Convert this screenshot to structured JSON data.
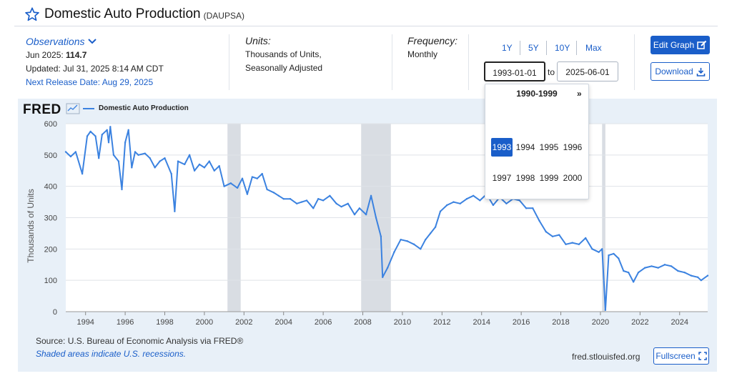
{
  "header": {
    "title": "Domestic Auto Production",
    "series_id": "(DAUPSA)"
  },
  "observations": {
    "label": "Observations",
    "period_label": "Jun 2025: ",
    "latest_value": "114.7",
    "updated": "Updated: Jul 31, 2025 8:14 AM CDT",
    "next_release": "Next Release Date: Aug 29, 2025"
  },
  "units": {
    "label": "Units:",
    "line1": "Thousands of Units,",
    "line2": "Seasonally Adjusted"
  },
  "frequency": {
    "label": "Frequency:",
    "value": "Monthly"
  },
  "range_buttons": [
    "1Y",
    "5Y",
    "10Y",
    "Max"
  ],
  "date_range": {
    "start": "1993-01-01",
    "to_label": "to",
    "end": "2025-06-01"
  },
  "buttons": {
    "edit_graph": "Edit Graph",
    "download": "Download",
    "fullscreen": "Fullscreen"
  },
  "year_picker": {
    "decade": "1990-1999",
    "next": "»",
    "years_row1": [
      "1993",
      "1994",
      "1995",
      "1996"
    ],
    "years_row2": [
      "1997",
      "1998",
      "1999",
      "2000"
    ],
    "selected": "1993"
  },
  "footer": {
    "source": "Source: U.S. Bureau of Economic Analysis via FRED®",
    "shaded_note": "Shaded areas indicate U.S. recessions.",
    "site": "fred.stlouisfed.org"
  },
  "logo": "FRED",
  "colors": {
    "line": "#3b82e0",
    "recession": "#d9dde3",
    "accent": "#1a5ec9",
    "panel_bg": "#e8f0f8"
  },
  "chart_data": {
    "type": "line",
    "title": "",
    "xlabel": "",
    "ylabel": "Thousands of Units",
    "ylim": [
      0,
      600
    ],
    "xlim": [
      "1993-01",
      "2025-06"
    ],
    "y_ticks": [
      "0",
      "100",
      "200",
      "300",
      "400",
      "500",
      "600"
    ],
    "x_ticks": [
      "1994",
      "1996",
      "1998",
      "2000",
      "2002",
      "2004",
      "2006",
      "2008",
      "2010",
      "2012",
      "2014",
      "2016",
      "2018",
      "2020",
      "2022",
      "2024"
    ],
    "grid": true,
    "legend_position": "top-left",
    "recessions": [
      {
        "start": "2001-03",
        "end": "2001-11"
      },
      {
        "start": "2007-12",
        "end": "2009-06"
      },
      {
        "start": "2020-02",
        "end": "2020-04"
      }
    ],
    "series": [
      {
        "name": "Domestic Auto Production",
        "points": [
          [
            "1993-01",
            510
          ],
          [
            "1993-04",
            495
          ],
          [
            "1993-07",
            510
          ],
          [
            "1993-11",
            440
          ],
          [
            "1994-02",
            560
          ],
          [
            "1994-04",
            575
          ],
          [
            "1994-07",
            560
          ],
          [
            "1994-09",
            490
          ],
          [
            "1994-11",
            565
          ],
          [
            "1995-02",
            580
          ],
          [
            "1995-03",
            540
          ],
          [
            "1995-04",
            590
          ],
          [
            "1995-06",
            500
          ],
          [
            "1995-09",
            480
          ],
          [
            "1995-11",
            390
          ],
          [
            "1996-01",
            540
          ],
          [
            "1996-03",
            580
          ],
          [
            "1996-05",
            460
          ],
          [
            "1996-07",
            510
          ],
          [
            "1996-09",
            500
          ],
          [
            "1997-01",
            505
          ],
          [
            "1997-04",
            490
          ],
          [
            "1997-07",
            460
          ],
          [
            "1997-10",
            480
          ],
          [
            "1998-01",
            490
          ],
          [
            "1998-05",
            440
          ],
          [
            "1998-07",
            320
          ],
          [
            "1998-09",
            480
          ],
          [
            "1999-01",
            470
          ],
          [
            "1999-04",
            500
          ],
          [
            "1999-07",
            450
          ],
          [
            "1999-10",
            470
          ],
          [
            "2000-01",
            460
          ],
          [
            "2000-04",
            480
          ],
          [
            "2000-07",
            450
          ],
          [
            "2000-10",
            465
          ],
          [
            "2001-01",
            400
          ],
          [
            "2001-05",
            410
          ],
          [
            "2001-09",
            395
          ],
          [
            "2001-12",
            425
          ],
          [
            "2002-03",
            375
          ],
          [
            "2002-06",
            430
          ],
          [
            "2002-09",
            425
          ],
          [
            "2002-12",
            440
          ],
          [
            "2003-03",
            390
          ],
          [
            "2003-07",
            380
          ],
          [
            "2003-10",
            370
          ],
          [
            "2004-01",
            360
          ],
          [
            "2004-05",
            360
          ],
          [
            "2004-09",
            345
          ],
          [
            "2004-12",
            350
          ],
          [
            "2005-03",
            355
          ],
          [
            "2005-07",
            330
          ],
          [
            "2005-10",
            360
          ],
          [
            "2006-01",
            355
          ],
          [
            "2006-05",
            370
          ],
          [
            "2006-09",
            345
          ],
          [
            "2006-12",
            335
          ],
          [
            "2007-04",
            345
          ],
          [
            "2007-08",
            310
          ],
          [
            "2007-11",
            330
          ],
          [
            "2008-03",
            310
          ],
          [
            "2008-06",
            370
          ],
          [
            "2008-09",
            300
          ],
          [
            "2008-12",
            240
          ],
          [
            "2009-01",
            110
          ],
          [
            "2009-04",
            140
          ],
          [
            "2009-08",
            190
          ],
          [
            "2009-12",
            230
          ],
          [
            "2010-04",
            225
          ],
          [
            "2010-08",
            215
          ],
          [
            "2010-12",
            200
          ],
          [
            "2011-03",
            230
          ],
          [
            "2011-06",
            250
          ],
          [
            "2011-09",
            270
          ],
          [
            "2011-12",
            320
          ],
          [
            "2012-04",
            340
          ],
          [
            "2012-08",
            350
          ],
          [
            "2012-12",
            345
          ],
          [
            "2013-04",
            360
          ],
          [
            "2013-08",
            370
          ],
          [
            "2013-12",
            355
          ],
          [
            "2014-04",
            375
          ],
          [
            "2014-08",
            340
          ],
          [
            "2014-12",
            365
          ],
          [
            "2015-04",
            345
          ],
          [
            "2015-08",
            360
          ],
          [
            "2015-12",
            355
          ],
          [
            "2016-04",
            330
          ],
          [
            "2016-08",
            330
          ],
          [
            "2016-12",
            290
          ],
          [
            "2017-04",
            255
          ],
          [
            "2017-08",
            240
          ],
          [
            "2017-12",
            245
          ],
          [
            "2018-04",
            215
          ],
          [
            "2018-08",
            220
          ],
          [
            "2018-12",
            215
          ],
          [
            "2019-04",
            235
          ],
          [
            "2019-08",
            200
          ],
          [
            "2019-12",
            190
          ],
          [
            "2020-02",
            200
          ],
          [
            "2020-04",
            5
          ],
          [
            "2020-06",
            180
          ],
          [
            "2020-09",
            185
          ],
          [
            "2020-12",
            170
          ],
          [
            "2021-03",
            130
          ],
          [
            "2021-06",
            125
          ],
          [
            "2021-09",
            95
          ],
          [
            "2021-12",
            125
          ],
          [
            "2022-04",
            140
          ],
          [
            "2022-08",
            145
          ],
          [
            "2022-12",
            140
          ],
          [
            "2023-04",
            150
          ],
          [
            "2023-08",
            145
          ],
          [
            "2023-12",
            130
          ],
          [
            "2024-04",
            125
          ],
          [
            "2024-08",
            115
          ],
          [
            "2024-12",
            110
          ],
          [
            "2025-02",
            100
          ],
          [
            "2025-06",
            115
          ]
        ]
      }
    ]
  }
}
